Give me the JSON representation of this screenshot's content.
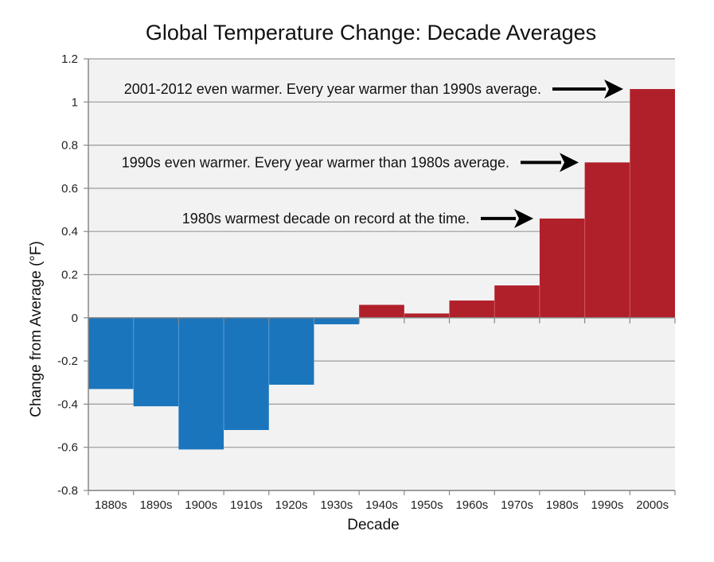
{
  "chart_data": {
    "type": "bar",
    "title": "Global Temperature Change: Decade Averages",
    "xlabel": "Decade",
    "ylabel": "Change from Average (°F)",
    "categories": [
      "1880s",
      "1890s",
      "1900s",
      "1910s",
      "1920s",
      "1930s",
      "1940s",
      "1950s",
      "1960s",
      "1970s",
      "1980s",
      "1990s",
      "2000s"
    ],
    "values": [
      -0.33,
      -0.41,
      -0.61,
      -0.52,
      -0.31,
      -0.03,
      0.06,
      0.02,
      0.08,
      0.15,
      0.46,
      0.72,
      1.06
    ],
    "ylim": [
      -0.8,
      1.2
    ],
    "yticks": [
      1.2,
      1,
      0.8,
      0.6,
      0.4,
      0.2,
      0,
      -0.2,
      -0.4,
      -0.6,
      -0.8
    ],
    "ytick_labels": [
      "1.2",
      "1",
      "0.8",
      "0.6",
      "0.4",
      "0.2",
      "0",
      "-0.2",
      "-0.4",
      "-0.6",
      "-0.8"
    ],
    "grid": true,
    "colors": {
      "negative": "#1a75bc",
      "positive": "#b0202a",
      "plot_background": "#f2f2f2",
      "gridline": "#999999"
    },
    "annotations": [
      {
        "text": "2001-2012 even warmer. Every year warmer than 1990s average.",
        "points_to": "2000s",
        "at_value": 1.06
      },
      {
        "text": "1990s even warmer. Every year warmer than 1980s average.",
        "points_to": "1990s",
        "at_value": 0.72
      },
      {
        "text": "1980s warmest decade on record at the time.",
        "points_to": "1980s",
        "at_value": 0.46
      }
    ]
  }
}
